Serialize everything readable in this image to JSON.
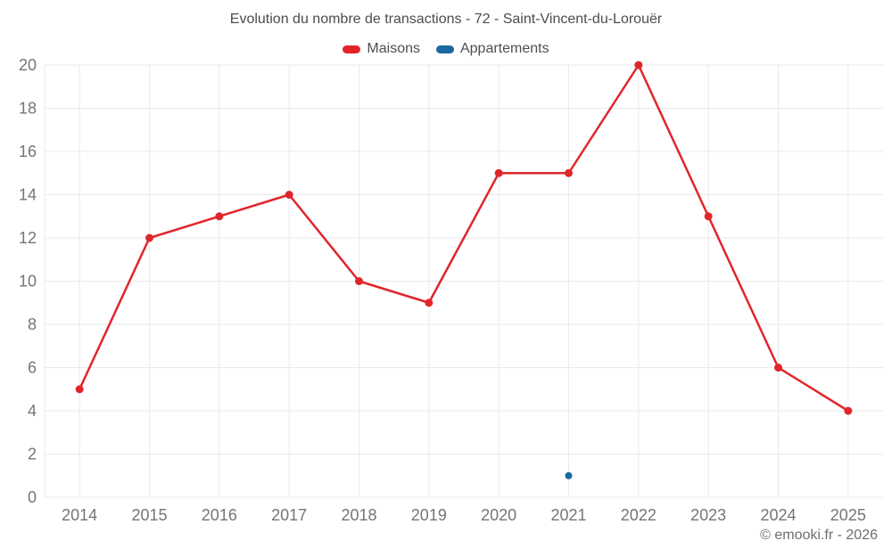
{
  "chart_data": {
    "type": "line",
    "title": "Evolution du nombre de transactions - 72 - Saint-Vincent-du-Lorouër",
    "x": [
      "2014",
      "2015",
      "2016",
      "2017",
      "2018",
      "2019",
      "2020",
      "2021",
      "2022",
      "2023",
      "2024",
      "2025"
    ],
    "series": [
      {
        "name": "Maisons",
        "color": "#e1262b",
        "marker_radius": 4.5,
        "line": true,
        "values": [
          5,
          12,
          13,
          14,
          10,
          9,
          15,
          15,
          20,
          13,
          6,
          4
        ]
      },
      {
        "name": "Appartements",
        "color": "#1b6a9e",
        "marker_radius": 4,
        "line": false,
        "values": [
          null,
          null,
          null,
          null,
          null,
          null,
          null,
          1,
          null,
          null,
          null,
          null
        ]
      }
    ],
    "ylim": [
      0,
      20
    ],
    "ytick_step": 2,
    "yticks": [
      0,
      2,
      4,
      6,
      8,
      10,
      12,
      14,
      16,
      18,
      20
    ],
    "grid": true,
    "legend_position": "top",
    "xlabel": "",
    "ylabel": ""
  },
  "footer": {
    "credit": "© emooki.fr - 2026"
  },
  "colors": {
    "background": "#ffffff",
    "grid": "#eaeaea",
    "axis_label": "#757575",
    "title_text": "#4d4d4d",
    "legend_text": "#4f4f4f",
    "footer_text": "#6e6e6e"
  }
}
